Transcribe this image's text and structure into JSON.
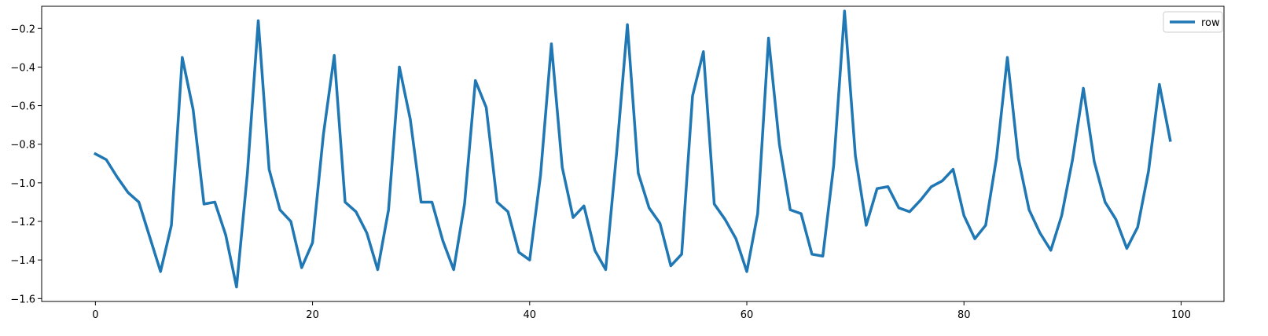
{
  "chart_data": {
    "type": "line",
    "title": "",
    "xlabel": "",
    "ylabel": "",
    "xlim": [
      -4.95,
      103.95
    ],
    "ylim": [
      -1.615,
      -0.085
    ],
    "x_ticks": [
      0,
      20,
      40,
      60,
      80,
      100
    ],
    "y_ticks": [
      -1.6,
      -1.4,
      -1.2,
      -1.0,
      -0.8,
      -0.6,
      -0.4,
      -0.2
    ],
    "x_tick_labels": [
      "0",
      "20",
      "40",
      "60",
      "80",
      "100"
    ],
    "y_tick_labels": [
      "−1.6",
      "−1.4",
      "−1.2",
      "−1.0",
      "−0.8",
      "−0.6",
      "−0.4",
      "−0.2"
    ],
    "grid": false,
    "legend_position": "top-right",
    "series": [
      {
        "name": "row",
        "color": "#1f77b4",
        "x": [
          0,
          1,
          2,
          3,
          4,
          5,
          6,
          7,
          8,
          9,
          10,
          11,
          12,
          13,
          14,
          15,
          16,
          17,
          18,
          19,
          20,
          21,
          22,
          23,
          24,
          25,
          26,
          27,
          28,
          29,
          30,
          31,
          32,
          33,
          34,
          35,
          36,
          37,
          38,
          39,
          40,
          41,
          42,
          43,
          44,
          45,
          46,
          47,
          48,
          49,
          50,
          51,
          52,
          53,
          54,
          55,
          56,
          57,
          58,
          59,
          60,
          61,
          62,
          63,
          64,
          65,
          66,
          67,
          68,
          69,
          70,
          71,
          72,
          73,
          74,
          75,
          76,
          77,
          78,
          79,
          80,
          81,
          82,
          83,
          84,
          85,
          86,
          87,
          88,
          89,
          90,
          91,
          92,
          93,
          94,
          95,
          96,
          97,
          98,
          99
        ],
        "values": [
          -0.85,
          -0.88,
          -0.97,
          -1.05,
          -1.1,
          -1.28,
          -1.46,
          -1.22,
          -0.35,
          -0.62,
          -1.11,
          -1.1,
          -1.27,
          -1.54,
          -0.95,
          -0.16,
          -0.93,
          -1.14,
          -1.2,
          -1.44,
          -1.31,
          -0.75,
          -0.34,
          -1.1,
          -1.15,
          -1.26,
          -1.45,
          -1.14,
          -0.4,
          -0.67,
          -1.1,
          -1.1,
          -1.3,
          -1.45,
          -1.11,
          -0.47,
          -0.61,
          -1.1,
          -1.15,
          -1.36,
          -1.4,
          -0.96,
          -0.28,
          -0.92,
          -1.18,
          -1.12,
          -1.35,
          -1.45,
          -0.85,
          -0.18,
          -0.95,
          -1.13,
          -1.21,
          -1.43,
          -1.37,
          -0.55,
          -0.32,
          -1.11,
          -1.19,
          -1.29,
          -1.46,
          -1.16,
          -0.25,
          -0.8,
          -1.14,
          -1.16,
          -1.37,
          -1.38,
          -0.91,
          -0.11,
          -0.86,
          -1.22,
          -1.03,
          -1.02,
          -1.13,
          -1.15,
          -1.09,
          -1.02,
          -0.99,
          -0.93,
          -1.17,
          -1.29,
          -1.22,
          -0.87,
          -0.35,
          -0.87,
          -1.14,
          -1.26,
          -1.35,
          -1.17,
          -0.88,
          -0.51,
          -0.89,
          -1.1,
          -1.19,
          -1.34,
          -1.23,
          -0.94,
          -0.49,
          -0.78
        ]
      }
    ]
  }
}
